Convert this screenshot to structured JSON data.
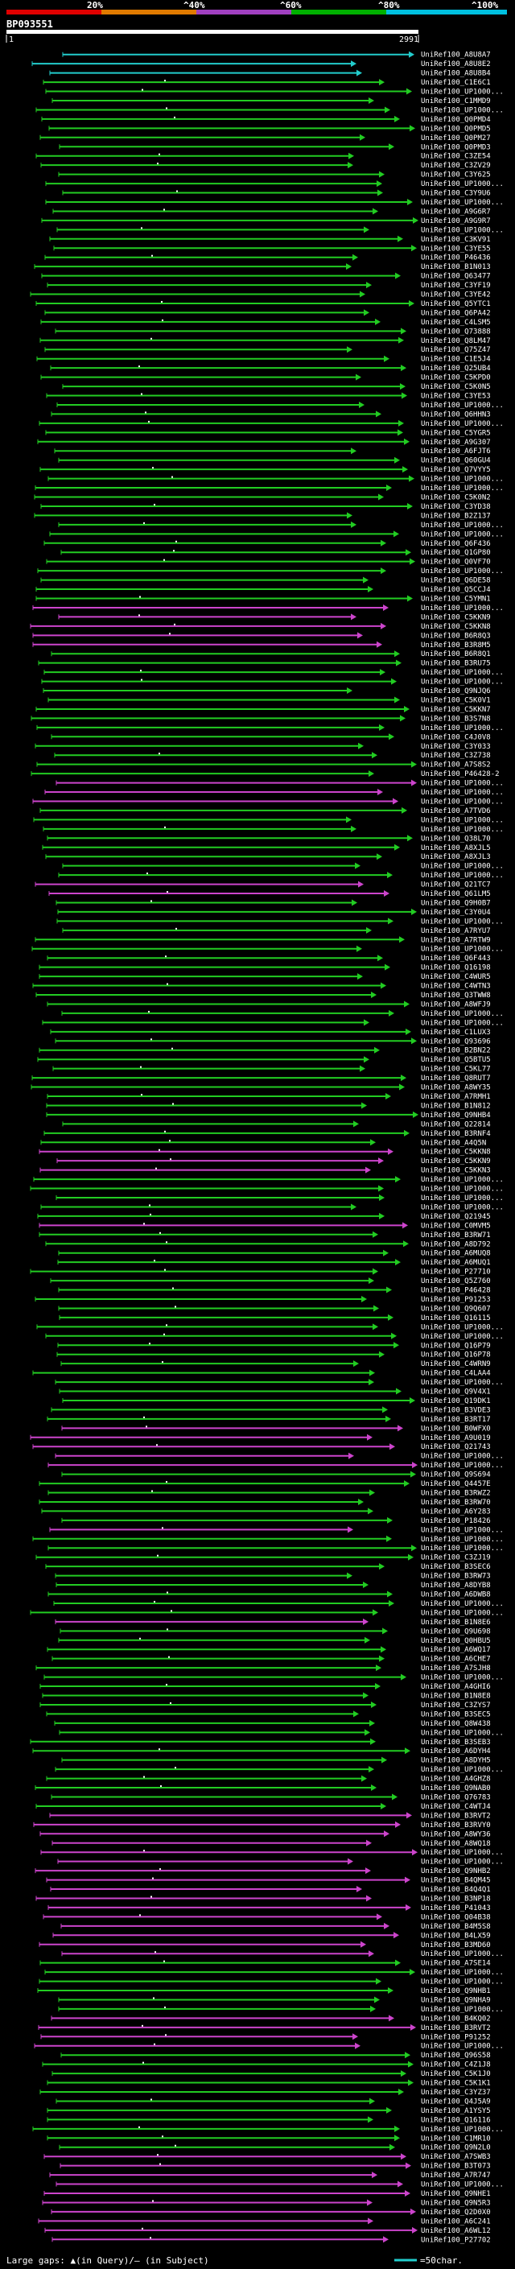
{
  "header": {
    "query_id": "BP093551",
    "query_start": "1",
    "query_end": "2991",
    "scale_labels": [
      "20%",
      "^40%",
      "^60%",
      "^80%",
      "^100%"
    ],
    "scale_colors": [
      "#e00000",
      "#e07a00",
      "#a040c0",
      "#00b000",
      "#00c0e0"
    ]
  },
  "colors": {
    "background": "#000000",
    "green_hit": "#22cc22",
    "magenta_hit": "#cc44cc",
    "cyan_hit": "#22cccc",
    "query_bar": "#ffffff"
  },
  "hits": [
    {
      "name": "UniRef100_A8U8A7",
      "color": "cyan"
    },
    {
      "name": "UniRef100_A8U8E2",
      "color": "cyan"
    },
    {
      "name": "UniRef100_A8U8B4",
      "color": "cyan"
    },
    {
      "name": "UniRef100_C1E6C1",
      "color": "green"
    },
    {
      "name": "UniRef100_UP1000...",
      "color": "green"
    },
    {
      "name": "UniRef100_C1MMD9",
      "color": "green"
    },
    {
      "name": "UniRef100_UP1000...",
      "color": "green"
    },
    {
      "name": "UniRef100_Q0PMD4",
      "color": "green"
    },
    {
      "name": "UniRef100_Q0PMD5",
      "color": "green"
    },
    {
      "name": "UniRef100_Q0PM27",
      "color": "green"
    },
    {
      "name": "UniRef100_Q0PMD3",
      "color": "green"
    },
    {
      "name": "UniRef100_C3ZE54",
      "color": "green"
    },
    {
      "name": "UniRef100_C3ZV29",
      "color": "green"
    },
    {
      "name": "UniRef100_C3Y625",
      "color": "green"
    },
    {
      "name": "UniRef100_UP1000...",
      "color": "green"
    },
    {
      "name": "UniRef100_C3Y9U6",
      "color": "green"
    },
    {
      "name": "UniRef100_UP1000...",
      "color": "green"
    },
    {
      "name": "UniRef100_A9G6R7",
      "color": "green"
    },
    {
      "name": "UniRef100_A9G9R7",
      "color": "green"
    },
    {
      "name": "UniRef100_UP1000...",
      "color": "green"
    },
    {
      "name": "UniRef100_C3KV91",
      "color": "green"
    },
    {
      "name": "UniRef100_C3YE55",
      "color": "green"
    },
    {
      "name": "UniRef100_P46436",
      "color": "green"
    },
    {
      "name": "UniRef100_B1N013",
      "color": "green"
    },
    {
      "name": "UniRef100_Q63477",
      "color": "green"
    },
    {
      "name": "UniRef100_C3YF19",
      "color": "green"
    },
    {
      "name": "UniRef100_C3YE42",
      "color": "green"
    },
    {
      "name": "UniRef100_Q5YTC1",
      "color": "green"
    },
    {
      "name": "UniRef100_Q6PA42",
      "color": "green"
    },
    {
      "name": "UniRef100_C4LSM5",
      "color": "green"
    },
    {
      "name": "UniRef100_Q73888",
      "color": "green"
    },
    {
      "name": "UniRef100_Q8LM47",
      "color": "green"
    },
    {
      "name": "UniRef100_Q75Z47",
      "color": "green"
    },
    {
      "name": "UniRef100_C1E5J4",
      "color": "green"
    },
    {
      "name": "UniRef100_Q25UB4",
      "color": "green"
    },
    {
      "name": "UniRef100_C5KPD0",
      "color": "green"
    },
    {
      "name": "UniRef100_C5K0N5",
      "color": "green"
    },
    {
      "name": "UniRef100_C3YE53",
      "color": "green"
    },
    {
      "name": "UniRef100_UP1000...",
      "color": "green"
    },
    {
      "name": "UniRef100_Q6HHN3",
      "color": "green"
    },
    {
      "name": "UniRef100_UP1000...",
      "color": "green"
    },
    {
      "name": "UniRef100_C5YGR5",
      "color": "green"
    },
    {
      "name": "UniRef100_A9G307",
      "color": "green"
    },
    {
      "name": "UniRef100_A6FJT6",
      "color": "green"
    },
    {
      "name": "UniRef100_Q60GU4",
      "color": "green"
    },
    {
      "name": "UniRef100_Q7VYY5",
      "color": "green"
    },
    {
      "name": "UniRef100_UP1000...",
      "color": "green"
    },
    {
      "name": "UniRef100_UP1000...",
      "color": "green"
    },
    {
      "name": "UniRef100_C5K0N2",
      "color": "green"
    },
    {
      "name": "UniRef100_C3YD38",
      "color": "green"
    },
    {
      "name": "UniRef100_B2Z137",
      "color": "green"
    },
    {
      "name": "UniRef100_UP1000...",
      "color": "green"
    },
    {
      "name": "UniRef100_UP1000...",
      "color": "green"
    },
    {
      "name": "UniRef100_Q6F436",
      "color": "green"
    },
    {
      "name": "UniRef100_Q1GP80",
      "color": "green"
    },
    {
      "name": "UniRef100_Q0VF70",
      "color": "green"
    },
    {
      "name": "UniRef100_UP1000...",
      "color": "green"
    },
    {
      "name": "UniRef100_Q6DE58",
      "color": "green"
    },
    {
      "name": "UniRef100_Q5CCJ4",
      "color": "green"
    },
    {
      "name": "UniRef100_C5YMN1",
      "color": "green"
    },
    {
      "name": "UniRef100_UP1000...",
      "color": "magenta"
    },
    {
      "name": "UniRef100_C5KKN9",
      "color": "magenta"
    },
    {
      "name": "UniRef100_C5KKN8",
      "color": "magenta"
    },
    {
      "name": "UniRef100_B6R8Q3",
      "color": "magenta"
    },
    {
      "name": "UniRef100_B3R8M5",
      "color": "magenta"
    },
    {
      "name": "UniRef100_B6R8Q1",
      "color": "green"
    },
    {
      "name": "UniRef100_B3RU75",
      "color": "green"
    },
    {
      "name": "UniRef100_UP1000...",
      "color": "green"
    },
    {
      "name": "UniRef100_UP1000...",
      "color": "green"
    },
    {
      "name": "UniRef100_Q9NJQ6",
      "color": "green"
    },
    {
      "name": "UniRef100_C5K0V1",
      "color": "green"
    },
    {
      "name": "UniRef100_C5KKN7",
      "color": "green"
    },
    {
      "name": "UniRef100_B3S7N8",
      "color": "green"
    },
    {
      "name": "UniRef100_UP1000...",
      "color": "green"
    },
    {
      "name": "UniRef100_C4J0V8",
      "color": "green"
    },
    {
      "name": "UniRef100_C3Y033",
      "color": "green"
    },
    {
      "name": "UniRef100_C3Z738",
      "color": "green"
    },
    {
      "name": "UniRef100_A7S8S2",
      "color": "green"
    },
    {
      "name": "UniRef100_P46428-2",
      "color": "green"
    },
    {
      "name": "UniRef100_UP1000...",
      "color": "magenta"
    },
    {
      "name": "UniRef100_UP1000...",
      "color": "magenta"
    },
    {
      "name": "UniRef100_UP1000...",
      "color": "magenta"
    },
    {
      "name": "UniRef100_A7TVD6",
      "color": "green"
    },
    {
      "name": "UniRef100_UP1000...",
      "color": "green"
    },
    {
      "name": "UniRef100_UP1000...",
      "color": "green"
    },
    {
      "name": "UniRef100_Q38L70",
      "color": "green"
    },
    {
      "name": "UniRef100_A8XJL5",
      "color": "green"
    },
    {
      "name": "UniRef100_A8XJL3",
      "color": "green"
    },
    {
      "name": "UniRef100_UP1000...",
      "color": "green"
    },
    {
      "name": "UniRef100_UP1000...",
      "color": "green"
    },
    {
      "name": "UniRef100_Q21TC7",
      "color": "magenta"
    },
    {
      "name": "UniRef100_Q61LM5",
      "color": "magenta"
    },
    {
      "name": "UniRef100_Q9H0B7",
      "color": "green"
    },
    {
      "name": "UniRef100_C3Y0U4",
      "color": "green"
    },
    {
      "name": "UniRef100_UP1000...",
      "color": "green"
    },
    {
      "name": "UniRef100_A7RYU7",
      "color": "green"
    },
    {
      "name": "UniRef100_A7RTW9",
      "color": "green"
    },
    {
      "name": "UniRef100_UP1000...",
      "color": "green"
    },
    {
      "name": "UniRef100_Q6F443",
      "color": "green"
    },
    {
      "name": "UniRef100_Q16198",
      "color": "green"
    },
    {
      "name": "UniRef100_C4WUR5",
      "color": "green"
    },
    {
      "name": "UniRef100_C4WTN3",
      "color": "green"
    },
    {
      "name": "UniRef100_Q3TWW8",
      "color": "green"
    },
    {
      "name": "UniRef100_A8WFJ9",
      "color": "green"
    },
    {
      "name": "UniRef100_UP1000...",
      "color": "green"
    },
    {
      "name": "UniRef100_UP1000...",
      "color": "green"
    },
    {
      "name": "UniRef100_C1LUX3",
      "color": "green"
    },
    {
      "name": "UniRef100_Q93696",
      "color": "green"
    },
    {
      "name": "UniRef100_B2BN22",
      "color": "green"
    },
    {
      "name": "UniRef100_Q5BTU5",
      "color": "green"
    },
    {
      "name": "UniRef100_C5KL77",
      "color": "green"
    },
    {
      "name": "UniRef100_Q8RUT7",
      "color": "green"
    },
    {
      "name": "UniRef100_A8WY35",
      "color": "green"
    },
    {
      "name": "UniRef100_A7RMH1",
      "color": "green"
    },
    {
      "name": "UniRef100_B1N812",
      "color": "green"
    },
    {
      "name": "UniRef100_Q9NHB4",
      "color": "green"
    },
    {
      "name": "UniRef100_Q22814",
      "color": "green"
    },
    {
      "name": "UniRef100_B3RNF4",
      "color": "green"
    },
    {
      "name": "UniRef100_A4Q5N",
      "color": "green"
    },
    {
      "name": "UniRef100_C5KKN8",
      "color": "magenta"
    },
    {
      "name": "UniRef100_C5KKN9",
      "color": "magenta"
    },
    {
      "name": "UniRef100_C5KKN3",
      "color": "magenta"
    },
    {
      "name": "UniRef100_UP1000...",
      "color": "green"
    },
    {
      "name": "UniRef100_UP1000...",
      "color": "green"
    },
    {
      "name": "UniRef100_UP1000...",
      "color": "green"
    },
    {
      "name": "UniRef100_UP1000...",
      "color": "green"
    },
    {
      "name": "UniRef100_Q21945",
      "color": "green"
    },
    {
      "name": "UniRef100_C0MVM5",
      "color": "magenta"
    },
    {
      "name": "UniRef100_B3RW71",
      "color": "green"
    },
    {
      "name": "UniRef100_A8D792",
      "color": "green"
    },
    {
      "name": "UniRef100_A6MUQ8",
      "color": "green"
    },
    {
      "name": "UniRef100_A6MUQ1",
      "color": "green"
    },
    {
      "name": "UniRef100_P27710",
      "color": "green"
    },
    {
      "name": "UniRef100_Q5Z760",
      "color": "green"
    },
    {
      "name": "UniRef100_P46428",
      "color": "green"
    },
    {
      "name": "UniRef100_P91253",
      "color": "green"
    },
    {
      "name": "UniRef100_Q9Q607",
      "color": "green"
    },
    {
      "name": "UniRef100_Q16115",
      "color": "green"
    },
    {
      "name": "UniRef100_UP1000...",
      "color": "green"
    },
    {
      "name": "UniRef100_UP1000...",
      "color": "green"
    },
    {
      "name": "UniRef100_Q16P79",
      "color": "green"
    },
    {
      "name": "UniRef100_Q16P78",
      "color": "green"
    },
    {
      "name": "UniRef100_C4WRN9",
      "color": "green"
    },
    {
      "name": "UniRef100_C4LAA4",
      "color": "green"
    },
    {
      "name": "UniRef100_UP1000...",
      "color": "green"
    },
    {
      "name": "UniRef100_Q9V4X1",
      "color": "green"
    },
    {
      "name": "UniRef100_Q19DK1",
      "color": "green"
    },
    {
      "name": "UniRef100_B3VDE3",
      "color": "green"
    },
    {
      "name": "UniRef100_B3RT17",
      "color": "green"
    },
    {
      "name": "UniRef100_B0WFX0",
      "color": "magenta"
    },
    {
      "name": "UniRef100_A9U019",
      "color": "magenta"
    },
    {
      "name": "UniRef100_Q21743",
      "color": "magenta"
    },
    {
      "name": "UniRef100_UP1000...",
      "color": "magenta"
    },
    {
      "name": "UniRef100_UP1000...",
      "color": "magenta"
    },
    {
      "name": "UniRef100_Q9S694",
      "color": "green"
    },
    {
      "name": "UniRef100_Q4457E",
      "color": "green"
    },
    {
      "name": "UniRef100_B3RWZ2",
      "color": "green"
    },
    {
      "name": "UniRef100_B3RW70",
      "color": "green"
    },
    {
      "name": "UniRef100_A6Y283",
      "color": "green"
    },
    {
      "name": "UniRef100_P18426",
      "color": "green"
    },
    {
      "name": "UniRef100_UP1000...",
      "color": "magenta"
    },
    {
      "name": "UniRef100_UP1000...",
      "color": "green"
    },
    {
      "name": "UniRef100_UP1000...",
      "color": "green"
    },
    {
      "name": "UniRef100_C3ZJ19",
      "color": "green"
    },
    {
      "name": "UniRef100_B3SEC6",
      "color": "green"
    },
    {
      "name": "UniRef100_B3RW73",
      "color": "green"
    },
    {
      "name": "UniRef100_A8DYB8",
      "color": "green"
    },
    {
      "name": "UniRef100_A6DWB8",
      "color": "green"
    },
    {
      "name": "UniRef100_UP1000...",
      "color": "green"
    },
    {
      "name": "UniRef100_UP1000...",
      "color": "green"
    },
    {
      "name": "UniRef100_B1N8E6",
      "color": "magenta"
    },
    {
      "name": "UniRef100_Q9U698",
      "color": "green"
    },
    {
      "name": "UniRef100_Q0HBU5",
      "color": "green"
    },
    {
      "name": "UniRef100_A6WQ17",
      "color": "green"
    },
    {
      "name": "UniRef100_A6CHE7",
      "color": "green"
    },
    {
      "name": "UniRef100_A7SJH8",
      "color": "green"
    },
    {
      "name": "UniRef100_UP1000...",
      "color": "green"
    },
    {
      "name": "UniRef100_A4GHI6",
      "color": "green"
    },
    {
      "name": "UniRef100_B1N8E8",
      "color": "green"
    },
    {
      "name": "UniRef100_C3ZYS7",
      "color": "green"
    },
    {
      "name": "UniRef100_B3SEC5",
      "color": "green"
    },
    {
      "name": "UniRef100_Q8W438",
      "color": "green"
    },
    {
      "name": "UniRef100_UP1000...",
      "color": "green"
    },
    {
      "name": "UniRef100_B3SEB3",
      "color": "green"
    },
    {
      "name": "UniRef100_A6DYH4",
      "color": "green"
    },
    {
      "name": "UniRef100_A8DYH5",
      "color": "green"
    },
    {
      "name": "UniRef100_UP1000...",
      "color": "green"
    },
    {
      "name": "UniRef100_A4GHZ8",
      "color": "green"
    },
    {
      "name": "UniRef100_Q9NAB0",
      "color": "green"
    },
    {
      "name": "UniRef100_Q76783",
      "color": "green"
    },
    {
      "name": "UniRef100_C4WTJ4",
      "color": "green"
    },
    {
      "name": "UniRef100_B3RVT2",
      "color": "magenta"
    },
    {
      "name": "UniRef100_B3RVY0",
      "color": "magenta"
    },
    {
      "name": "UniRef100_A8WY36",
      "color": "magenta"
    },
    {
      "name": "UniRef100_A8WQ18",
      "color": "magenta"
    },
    {
      "name": "UniRef100_UP1000...",
      "color": "magenta"
    },
    {
      "name": "UniRef100_UP1000...",
      "color": "magenta"
    },
    {
      "name": "UniRef100_Q9NHB2",
      "color": "magenta"
    },
    {
      "name": "UniRef100_B4QM45",
      "color": "magenta"
    },
    {
      "name": "UniRef100_B4Q4Q1",
      "color": "magenta"
    },
    {
      "name": "UniRef100_B3NP18",
      "color": "magenta"
    },
    {
      "name": "UniRef100_P41043",
      "color": "magenta"
    },
    {
      "name": "UniRef100_Q04B38",
      "color": "magenta"
    },
    {
      "name": "UniRef100_B4M5S8",
      "color": "magenta"
    },
    {
      "name": "UniRef100_B4LX59",
      "color": "magenta"
    },
    {
      "name": "UniRef100_B3MD60",
      "color": "magenta"
    },
    {
      "name": "UniRef100_UP1000...",
      "color": "magenta"
    },
    {
      "name": "UniRef100_A7SE14",
      "color": "green"
    },
    {
      "name": "UniRef100_UP1000...",
      "color": "green"
    },
    {
      "name": "UniRef100_UP1000...",
      "color": "green"
    },
    {
      "name": "UniRef100_Q9NHB1",
      "color": "green"
    },
    {
      "name": "UniRef100_Q9NHA9",
      "color": "green"
    },
    {
      "name": "UniRef100_UP1000...",
      "color": "green"
    },
    {
      "name": "UniRef100_B4KQ02",
      "color": "magenta"
    },
    {
      "name": "UniRef100_B3RVT2",
      "color": "magenta"
    },
    {
      "name": "UniRef100_P91252",
      "color": "magenta"
    },
    {
      "name": "UniRef100_UP1000...",
      "color": "magenta"
    },
    {
      "name": "UniRef100_Q96S58",
      "color": "green"
    },
    {
      "name": "UniRef100_C4Z1J8",
      "color": "green"
    },
    {
      "name": "UniRef100_C5K1J0",
      "color": "green"
    },
    {
      "name": "UniRef100_C5K1K1",
      "color": "green"
    },
    {
      "name": "UniRef100_C3YZ37",
      "color": "green"
    },
    {
      "name": "UniRef100_Q4J5A9",
      "color": "green"
    },
    {
      "name": "UniRef100_A1YSY5",
      "color": "green"
    },
    {
      "name": "UniRef100_Q16116",
      "color": "green"
    },
    {
      "name": "UniRef100_UP1000...",
      "color": "green"
    },
    {
      "name": "UniRef100_C1MR10",
      "color": "green"
    },
    {
      "name": "UniRef100_Q9N2L0",
      "color": "green"
    },
    {
      "name": "UniRef100_A7SWB3",
      "color": "magenta"
    },
    {
      "name": "UniRef100_B3T073",
      "color": "magenta"
    },
    {
      "name": "UniRef100_A7R747",
      "color": "magenta"
    },
    {
      "name": "UniRef100_UP1000...",
      "color": "magenta"
    },
    {
      "name": "UniRef100_Q9NHE1",
      "color": "magenta"
    },
    {
      "name": "UniRef100_Q9N5R3",
      "color": "magenta"
    },
    {
      "name": "UniRef100_Q2D0X0",
      "color": "magenta"
    },
    {
      "name": "UniRef100_A6C241",
      "color": "magenta"
    },
    {
      "name": "UniRef100_A6WL12",
      "color": "magenta"
    },
    {
      "name": "UniRef100_P27702",
      "color": "magenta"
    }
  ],
  "legend": {
    "gaps_label": "Large gaps: ▲(in Query)/– (in Subject)",
    "scale_label": "=50char."
  }
}
